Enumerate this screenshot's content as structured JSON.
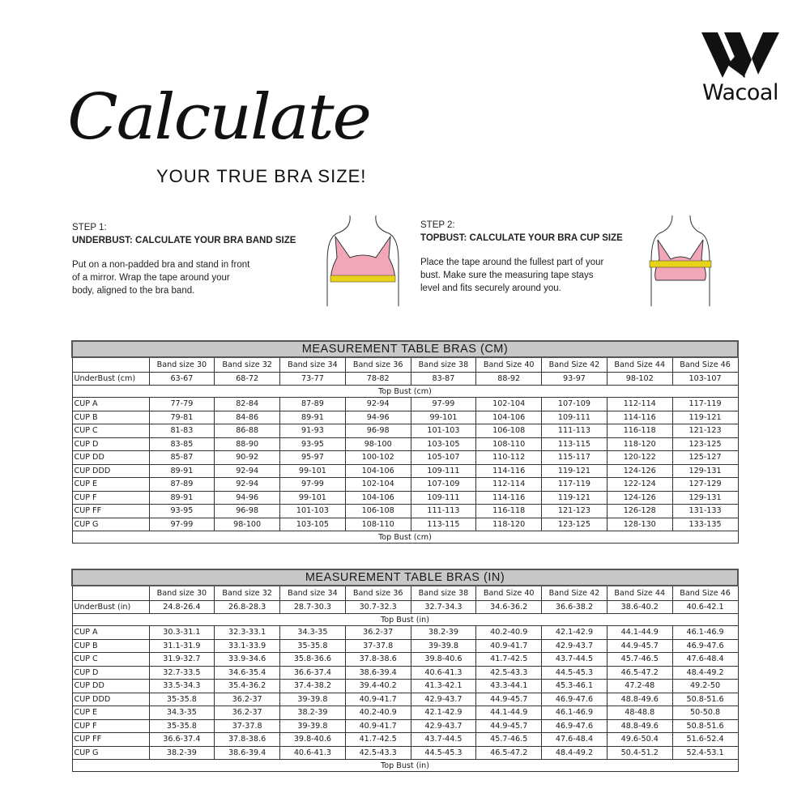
{
  "brand": {
    "name": "Wacoal"
  },
  "heading": {
    "script": "Calculate",
    "subtitle": "YOUR TRUE BRA SIZE!"
  },
  "steps": [
    {
      "label": "STEP 1:",
      "title": "UNDERBUST: CALCULATE YOUR BRA BAND SIZE",
      "text": [
        "Put on a non-padded bra and stand in front",
        "of a mirror. Wrap the tape around your",
        "body, aligned to the bra band."
      ]
    },
    {
      "label": "STEP 2:",
      "title": "TOPBUST: CALCULATE YOUR BRA CUP SIZE",
      "text": [
        "Place the tape around the fullest part of your",
        "bust. Make sure the measuring tape stays",
        "level and fits securely around you."
      ]
    }
  ],
  "colors": {
    "bra_pink": "#f2a7b8",
    "tape_yellow": "#e8d21a",
    "title_bg": "#c8c8c8"
  },
  "tables": [
    {
      "title": "MEASUREMENT TABLE BRAS (CM)",
      "headers": [
        "Band size 30",
        "Band size 32",
        "Band size 34",
        "Band size 36",
        "Band size 38",
        "Band Size 40",
        "Band Size 42",
        "Band Size 44",
        "Band Size 46"
      ],
      "underbust": {
        "label": "UnderBust (cm)",
        "values": [
          "63-67",
          "68-72",
          "73-77",
          "78-82",
          "83-87",
          "88-92",
          "93-97",
          "98-102",
          "103-107"
        ]
      },
      "section_label": "Top Bust (cm)",
      "rows": [
        {
          "cup": "CUP A",
          "values": [
            "77-79",
            "82-84",
            "87-89",
            "92-94",
            "97-99",
            "102-104",
            "107-109",
            "112-114",
            "117-119"
          ]
        },
        {
          "cup": "CUP B",
          "values": [
            "79-81",
            "84-86",
            "89-91",
            "94-96",
            "99-101",
            "104-106",
            "109-111",
            "114-116",
            "119-121"
          ]
        },
        {
          "cup": "CUP C",
          "values": [
            "81-83",
            "86-88",
            "91-93",
            "96-98",
            "101-103",
            "106-108",
            "111-113",
            "116-118",
            "121-123"
          ]
        },
        {
          "cup": "CUP D",
          "values": [
            "83-85",
            "88-90",
            "93-95",
            "98-100",
            "103-105",
            "108-110",
            "113-115",
            "118-120",
            "123-125"
          ]
        },
        {
          "cup": "CUP DD",
          "values": [
            "85-87",
            "90-92",
            "95-97",
            "100-102",
            "105-107",
            "110-112",
            "115-117",
            "120-122",
            "125-127"
          ]
        },
        {
          "cup": "CUP DDD",
          "values": [
            "89-91",
            "92-94",
            "99-101",
            "104-106",
            "109-111",
            "114-116",
            "119-121",
            "124-126",
            "129-131"
          ]
        },
        {
          "cup": "CUP E",
          "values": [
            "87-89",
            "92-94",
            "97-99",
            "102-104",
            "107-109",
            "112-114",
            "117-119",
            "122-124",
            "127-129"
          ]
        },
        {
          "cup": "CUP F",
          "values": [
            "89-91",
            "94-96",
            "99-101",
            "104-106",
            "109-111",
            "114-116",
            "119-121",
            "124-126",
            "129-131"
          ]
        },
        {
          "cup": "CUP FF",
          "values": [
            "93-95",
            "96-98",
            "101-103",
            "106-108",
            "111-113",
            "116-118",
            "121-123",
            "126-128",
            "131-133"
          ]
        },
        {
          "cup": "CUP G",
          "values": [
            "97-99",
            "98-100",
            "103-105",
            "108-110",
            "113-115",
            "118-120",
            "123-125",
            "128-130",
            "133-135"
          ]
        }
      ],
      "footer_label": "Top Bust (cm)"
    },
    {
      "title": "MEASUREMENT TABLE BRAS (IN)",
      "headers": [
        "Band size 30",
        "Band size 32",
        "Band size 34",
        "Band size 36",
        "Band size 38",
        "Band Size 40",
        "Band Size 42",
        "Band Size 44",
        "Band Size 46"
      ],
      "underbust": {
        "label": "UnderBust (in)",
        "values": [
          "24.8-26.4",
          "26.8-28.3",
          "28.7-30.3",
          "30.7-32.3",
          "32.7-34.3",
          "34.6-36.2",
          "36.6-38.2",
          "38.6-40.2",
          "40.6-42.1"
        ]
      },
      "section_label": "Top Bust (in)",
      "rows": [
        {
          "cup": "CUP A",
          "values": [
            "30.3-31.1",
            "32.3-33.1",
            "34.3-35",
            "36.2-37",
            "38.2-39",
            "40.2-40.9",
            "42.1-42.9",
            "44.1-44.9",
            "46.1-46.9"
          ]
        },
        {
          "cup": "CUP B",
          "values": [
            "31.1-31.9",
            "33.1-33.9",
            "35-35.8",
            "37-37.8",
            "39-39.8",
            "40.9-41.7",
            "42.9-43.7",
            "44.9-45.7",
            "46.9-47.6"
          ]
        },
        {
          "cup": "CUP C",
          "values": [
            "31.9-32.7",
            "33.9-34.6",
            "35.8-36.6",
            "37.8-38.6",
            "39.8-40.6",
            "41.7-42.5",
            "43.7-44.5",
            "45.7-46.5",
            "47.6-48.4"
          ]
        },
        {
          "cup": "CUP D",
          "values": [
            "32.7-33.5",
            "34.6-35.4",
            "36.6-37.4",
            "38.6-39.4",
            "40.6-41.3",
            "42.5-43.3",
            "44.5-45.3",
            "46.5-47.2",
            "48.4-49.2"
          ]
        },
        {
          "cup": "CUP DD",
          "values": [
            "33.5-34.3",
            "35.4-36.2",
            "37.4-38.2",
            "39.4-40.2",
            "41.3-42.1",
            "43.3-44.1",
            "45.3-46.1",
            "47.2-48",
            "49.2-50"
          ]
        },
        {
          "cup": "CUP DDD",
          "values": [
            "35-35.8",
            "36.2-37",
            "39-39.8",
            "40.9-41.7",
            "42.9-43.7",
            "44.9-45.7",
            "46.9-47.6",
            "48.8-49.6",
            "50.8-51.6"
          ]
        },
        {
          "cup": "CUP E",
          "values": [
            "34.3-35",
            "36.2-37",
            "38.2-39",
            "40.2-40.9",
            "42.1-42.9",
            "44.1-44.9",
            "46.1-46.9",
            "48-48.8",
            "50-50.8"
          ]
        },
        {
          "cup": "CUP F",
          "values": [
            "35-35.8",
            "37-37.8",
            "39-39.8",
            "40.9-41.7",
            "42.9-43.7",
            "44.9-45.7",
            "46.9-47.6",
            "48.8-49.6",
            "50.8-51.6"
          ]
        },
        {
          "cup": "CUP FF",
          "values": [
            "36.6-37.4",
            "37.8-38.6",
            "39.8-40.6",
            "41.7-42.5",
            "43.7-44.5",
            "45.7-46.5",
            "47.6-48.4",
            "49.6-50.4",
            "51.6-52.4"
          ]
        },
        {
          "cup": "CUP G",
          "values": [
            "38.2-39",
            "38.6-39.4",
            "40.6-41.3",
            "42.5-43.3",
            "44.5-45.3",
            "46.5-47.2",
            "48.4-49.2",
            "50.4-51.2",
            "52.4-53.1"
          ]
        }
      ],
      "footer_label": "Top Bust (in)"
    }
  ]
}
